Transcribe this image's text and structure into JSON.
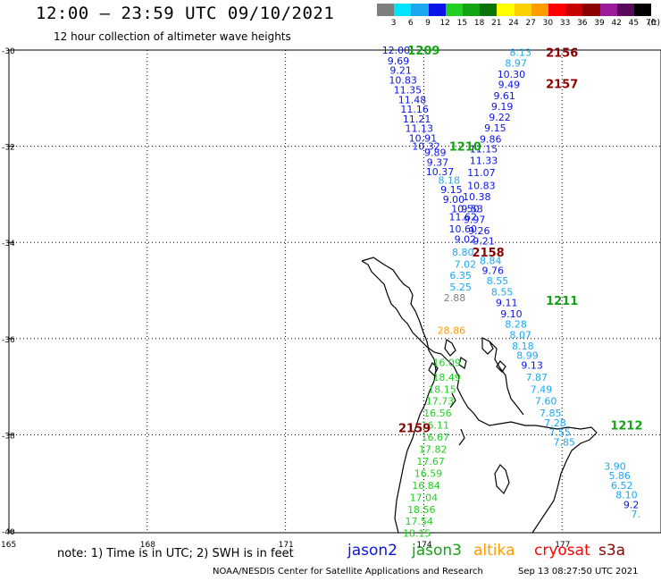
{
  "header": {
    "title": "12:00 – 23:59 UTC 09/10/2021",
    "subtitle": "12 hour collection of altimeter wave heights"
  },
  "legend": {
    "unit": "(ft)",
    "bins": [
      {
        "label": "3",
        "color": "#7f7f7f"
      },
      {
        "label": "6",
        "color": "#00e5ff"
      },
      {
        "label": "9",
        "color": "#1ba8f0"
      },
      {
        "label": "12",
        "color": "#0a14e6"
      },
      {
        "label": "15",
        "color": "#22d022"
      },
      {
        "label": "18",
        "color": "#13a313"
      },
      {
        "label": "21",
        "color": "#0c730c"
      },
      {
        "label": "24",
        "color": "#ffff00"
      },
      {
        "label": "27",
        "color": "#ffd000"
      },
      {
        "label": "30",
        "color": "#ff9c00"
      },
      {
        "label": "33",
        "color": "#ff0000"
      },
      {
        "label": "36",
        "color": "#c80000"
      },
      {
        "label": "39",
        "color": "#8c0000"
      },
      {
        "label": "42",
        "color": "#9c1a9c"
      },
      {
        "label": "45",
        "color": "#5a0a5a"
      },
      {
        "label": "70",
        "color": "#000000"
      }
    ]
  },
  "axes": {
    "lat_labels": [
      "-30",
      "-32",
      "-34",
      "-36",
      "-38",
      "-40"
    ],
    "lon_labels": [
      "165",
      "168",
      "171",
      "174",
      "177"
    ]
  },
  "passes": [
    {
      "time": "1209",
      "satellite": "jason3",
      "color": "#13a313",
      "lon": 174.0,
      "lat": -30.0
    },
    {
      "time": "1210",
      "satellite": "jason3",
      "color": "#13a313",
      "lon": 174.9,
      "lat": -32.0
    },
    {
      "time": "1211",
      "satellite": "jason3",
      "color": "#13a313",
      "lon": 177.0,
      "lat": -35.2
    },
    {
      "time": "1212",
      "satellite": "jason3",
      "color": "#13a313",
      "lon": 178.4,
      "lat": -37.8
    },
    {
      "time": "2156",
      "satellite": "s3a",
      "color": "#8c0000",
      "lon": 177.0,
      "lat": -30.05
    },
    {
      "time": "2157",
      "satellite": "s3a",
      "color": "#8c0000",
      "lon": 177.0,
      "lat": -30.7
    },
    {
      "time": "2158",
      "satellite": "s3a",
      "color": "#8c0000",
      "lon": 175.4,
      "lat": -34.2
    },
    {
      "time": "2159",
      "satellite": "s3a",
      "color": "#8c0000",
      "lon": 173.8,
      "lat": -37.85
    }
  ],
  "tracks": [
    {
      "name": "jason2",
      "points": [
        {
          "lon": 173.4,
          "lat": -30.0,
          "value": "12.00",
          "color": "#0a14e6"
        },
        {
          "lon": 173.45,
          "lat": -30.22,
          "value": "9.69",
          "color": "#0a14e6"
        },
        {
          "lon": 173.5,
          "lat": -30.42,
          "value": "9.21",
          "color": "#0a14e6"
        },
        {
          "lon": 173.55,
          "lat": -30.62,
          "value": "10.83",
          "color": "#0a14e6"
        },
        {
          "lon": 173.65,
          "lat": -30.83,
          "value": "11.35",
          "color": "#0a14e6"
        },
        {
          "lon": 173.75,
          "lat": -31.03,
          "value": "11.48",
          "color": "#0a14e6"
        },
        {
          "lon": 173.8,
          "lat": -31.23,
          "value": "11.16",
          "color": "#0a14e6"
        },
        {
          "lon": 173.85,
          "lat": -31.43,
          "value": "11.21",
          "color": "#0a14e6"
        },
        {
          "lon": 173.9,
          "lat": -31.63,
          "value": "11.13",
          "color": "#0a14e6"
        },
        {
          "lon": 173.98,
          "lat": -31.83,
          "value": "10.91",
          "color": "#0a14e6"
        },
        {
          "lon": 174.05,
          "lat": -32.0,
          "value": "10.32",
          "color": "#0a14e6"
        },
        {
          "lon": 174.25,
          "lat": -32.13,
          "value": "9.89",
          "color": "#0a14e6"
        },
        {
          "lon": 174.3,
          "lat": -32.33,
          "value": "9.37",
          "color": "#0a14e6"
        },
        {
          "lon": 174.35,
          "lat": -32.53,
          "value": "10.37",
          "color": "#0a14e6"
        },
        {
          "lon": 174.55,
          "lat": -32.7,
          "value": "8.18",
          "color": "#1ba8f0"
        },
        {
          "lon": 174.6,
          "lat": -32.9,
          "value": "9.15",
          "color": "#0a14e6"
        },
        {
          "lon": 174.65,
          "lat": -33.1,
          "value": "9.00",
          "color": "#0a14e6"
        },
        {
          "lon": 174.9,
          "lat": -33.3,
          "value": "10.50",
          "color": "#0a14e6"
        },
        {
          "lon": 174.85,
          "lat": -33.47,
          "value": "11.62",
          "color": "#0a14e6"
        },
        {
          "lon": 174.85,
          "lat": -33.72,
          "value": "10.60",
          "color": "#0a14e6"
        },
        {
          "lon": 174.9,
          "lat": -33.93,
          "value": "9.02",
          "color": "#0a14e6"
        },
        {
          "lon": 174.85,
          "lat": -34.2,
          "value": "8.80",
          "color": "#1ba8f0"
        },
        {
          "lon": 174.9,
          "lat": -34.45,
          "value": "7.02",
          "color": "#1ba8f0"
        },
        {
          "lon": 174.8,
          "lat": -34.68,
          "value": "6.35",
          "color": "#1ba8f0"
        },
        {
          "lon": 174.8,
          "lat": -34.93,
          "value": "5.25",
          "color": "#1ba8f0"
        },
        {
          "lon": 174.67,
          "lat": -35.15,
          "value": "2.88",
          "color": "#7f7f7f"
        },
        {
          "lon": 174.6,
          "lat": -35.83,
          "value": "28.86",
          "color": "#ff9c00"
        },
        {
          "lon": 174.5,
          "lat": -36.5,
          "value": "16.09",
          "color": "#22d022"
        },
        {
          "lon": 174.5,
          "lat": -36.8,
          "value": "18.49",
          "color": "#22d022"
        },
        {
          "lon": 174.4,
          "lat": -37.05,
          "value": "18.15",
          "color": "#22d022"
        },
        {
          "lon": 174.35,
          "lat": -37.3,
          "value": "17.73",
          "color": "#22d022"
        },
        {
          "lon": 174.3,
          "lat": -37.55,
          "value": "16.56",
          "color": "#22d022"
        },
        {
          "lon": 174.25,
          "lat": -37.8,
          "value": "16.11",
          "color": "#22d022"
        },
        {
          "lon": 174.25,
          "lat": -38.05,
          "value": "16.67",
          "color": "#22d022"
        },
        {
          "lon": 174.2,
          "lat": -38.3,
          "value": "17.82",
          "color": "#22d022"
        },
        {
          "lon": 174.15,
          "lat": -38.55,
          "value": "17.67",
          "color": "#22d022"
        },
        {
          "lon": 174.1,
          "lat": -38.8,
          "value": "16.59",
          "color": "#22d022"
        },
        {
          "lon": 174.05,
          "lat": -39.05,
          "value": "16.84",
          "color": "#22d022"
        },
        {
          "lon": 174.0,
          "lat": -39.3,
          "value": "17.04",
          "color": "#22d022"
        },
        {
          "lon": 173.95,
          "lat": -39.55,
          "value": "18.56",
          "color": "#22d022"
        },
        {
          "lon": 173.9,
          "lat": -39.8,
          "value": "17.54",
          "color": "#22d022"
        },
        {
          "lon": 173.85,
          "lat": -40.05,
          "value": "18.15",
          "color": "#22d022"
        }
      ]
    },
    {
      "name": "s3a",
      "points": [
        {
          "lon": 176.1,
          "lat": -30.05,
          "value": "8.13",
          "color": "#1ba8f0"
        },
        {
          "lon": 176.0,
          "lat": -30.27,
          "value": "8.97",
          "color": "#1ba8f0"
        },
        {
          "lon": 175.9,
          "lat": -30.5,
          "value": "10.30",
          "color": "#0a14e6"
        },
        {
          "lon": 175.85,
          "lat": -30.72,
          "value": "9.49",
          "color": "#0a14e6"
        },
        {
          "lon": 175.75,
          "lat": -30.95,
          "value": "9.61",
          "color": "#0a14e6"
        },
        {
          "lon": 175.7,
          "lat": -31.17,
          "value": "9.19",
          "color": "#0a14e6"
        },
        {
          "lon": 175.65,
          "lat": -31.39,
          "value": "9.22",
          "color": "#0a14e6"
        },
        {
          "lon": 175.55,
          "lat": -31.62,
          "value": "9.15",
          "color": "#0a14e6"
        },
        {
          "lon": 175.45,
          "lat": -31.85,
          "value": "9.86",
          "color": "#0a14e6"
        },
        {
          "lon": 175.3,
          "lat": -32.05,
          "value": "11.15",
          "color": "#0a14e6"
        },
        {
          "lon": 175.3,
          "lat": -32.3,
          "value": "11.33",
          "color": "#0a14e6"
        },
        {
          "lon": 175.25,
          "lat": -32.55,
          "value": "11.07",
          "color": "#0a14e6"
        },
        {
          "lon": 175.25,
          "lat": -32.82,
          "value": "10.83",
          "color": "#0a14e6"
        },
        {
          "lon": 175.15,
          "lat": -33.05,
          "value": "10.38",
          "color": "#0a14e6"
        },
        {
          "lon": 175.05,
          "lat": -33.3,
          "value": "9.53",
          "color": "#0a14e6"
        },
        {
          "lon": 175.1,
          "lat": -33.52,
          "value": "9.97",
          "color": "#0a14e6"
        },
        {
          "lon": 175.2,
          "lat": -33.75,
          "value": "9.26",
          "color": "#0a14e6"
        },
        {
          "lon": 175.3,
          "lat": -33.97,
          "value": "9.21",
          "color": "#0a14e6"
        },
        {
          "lon": 175.45,
          "lat": -34.38,
          "value": "8.84",
          "color": "#1ba8f0"
        },
        {
          "lon": 175.5,
          "lat": -34.58,
          "value": "9.76",
          "color": "#0a14e6"
        },
        {
          "lon": 175.6,
          "lat": -34.8,
          "value": "8.55",
          "color": "#1ba8f0"
        },
        {
          "lon": 175.7,
          "lat": -35.03,
          "value": "8.55",
          "color": "#1ba8f0"
        },
        {
          "lon": 175.8,
          "lat": -35.25,
          "value": "9.11",
          "color": "#0a14e6"
        },
        {
          "lon": 175.9,
          "lat": -35.48,
          "value": "9.10",
          "color": "#0a14e6"
        },
        {
          "lon": 176.0,
          "lat": -35.7,
          "value": "8.28",
          "color": "#1ba8f0"
        },
        {
          "lon": 176.1,
          "lat": -35.92,
          "value": "8.07",
          "color": "#1ba8f0"
        },
        {
          "lon": 176.15,
          "lat": -36.15,
          "value": "8.18",
          "color": "#1ba8f0"
        },
        {
          "lon": 176.25,
          "lat": -36.35,
          "value": "8.99",
          "color": "#1ba8f0"
        },
        {
          "lon": 176.35,
          "lat": -36.55,
          "value": "9.13",
          "color": "#0a14e6"
        },
        {
          "lon": 176.45,
          "lat": -36.8,
          "value": "7.87",
          "color": "#1ba8f0"
        },
        {
          "lon": 176.55,
          "lat": -37.05,
          "value": "7.49",
          "color": "#1ba8f0"
        },
        {
          "lon": 176.65,
          "lat": -37.3,
          "value": "7.60",
          "color": "#1ba8f0"
        },
        {
          "lon": 176.75,
          "lat": -37.55,
          "value": "7.85",
          "color": "#1ba8f0"
        },
        {
          "lon": 176.85,
          "lat": -37.75,
          "value": "7.28",
          "color": "#1ba8f0"
        },
        {
          "lon": 176.95,
          "lat": -37.95,
          "value": "7.55",
          "color": "#1ba8f0"
        },
        {
          "lon": 177.05,
          "lat": -38.15,
          "value": "7.85",
          "color": "#1ba8f0"
        }
      ]
    },
    {
      "name": "jason3-east",
      "points": [
        {
          "lon": 178.15,
          "lat": -38.65,
          "value": "3.90",
          "color": "#1ba8f0"
        },
        {
          "lon": 178.25,
          "lat": -38.85,
          "value": "5.86",
          "color": "#1ba8f0"
        },
        {
          "lon": 178.3,
          "lat": -39.05,
          "value": "6.52",
          "color": "#1ba8f0"
        },
        {
          "lon": 178.4,
          "lat": -39.25,
          "value": "8.10",
          "color": "#1ba8f0"
        },
        {
          "lon": 178.5,
          "lat": -39.45,
          "value": "9.2",
          "color": "#0a14e6"
        },
        {
          "lon": 178.6,
          "lat": -39.65,
          "value": "7.",
          "color": "#1ba8f0"
        }
      ]
    }
  ],
  "footer": {
    "note": "note:  1) Time is in UTC; 2) SWH is in feet",
    "satellites": [
      {
        "label": "jason2",
        "color": "#0a14e6"
      },
      {
        "label": "jason3",
        "color": "#13a313"
      },
      {
        "label": "altika",
        "color": "#ff9c00"
      },
      {
        "label": "cryosat",
        "color": "#ff0000"
      },
      {
        "label": "s3a",
        "color": "#8c0000"
      }
    ],
    "credit": "NOAA/NESDIS Center for Satellite Applications and Research",
    "timestamp": "Sep 13 08:27:50 UTC 2021"
  }
}
